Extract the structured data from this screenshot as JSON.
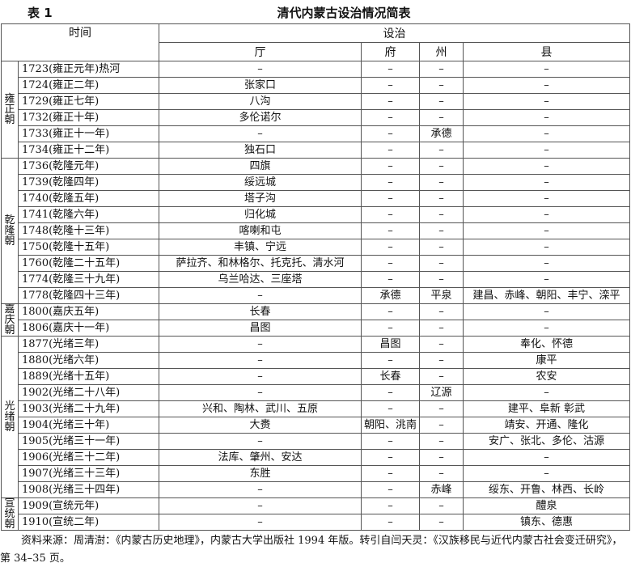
{
  "table_label": "表 1",
  "title": "清代内蒙古设治情况简表",
  "headers": {
    "time": "时间",
    "setup": "设治",
    "ting": "厅",
    "fu": "府",
    "zhou": "州",
    "xian": "县"
  },
  "eras": [
    {
      "name": "雍正朝",
      "rows": [
        {
          "time": "1723(雍正元年)热河",
          "ting": "–",
          "fu": "–",
          "zhou": "–",
          "xian": "–"
        },
        {
          "time": "1724(雍正二年)",
          "ting": "张家口",
          "fu": "–",
          "zhou": "–",
          "xian": "–"
        },
        {
          "time": "1729(雍正七年)",
          "ting": "八沟",
          "fu": "–",
          "zhou": "–",
          "xian": "–"
        },
        {
          "time": "1732(雍正十年)",
          "ting": "多伦诺尔",
          "fu": "–",
          "zhou": "–",
          "xian": "–"
        },
        {
          "time": "1733(雍正十一年)",
          "ting": "–",
          "fu": "–",
          "zhou": "承德",
          "xian": "–"
        },
        {
          "time": "1734(雍正十二年)",
          "ting": "独石口",
          "fu": "–",
          "zhou": "–",
          "xian": "–"
        }
      ]
    },
    {
      "name": "乾隆朝",
      "rows": [
        {
          "time": "1736(乾隆元年)",
          "ting": "四旗",
          "fu": "–",
          "zhou": "–",
          "xian": "–"
        },
        {
          "time": "1739(乾隆四年)",
          "ting": "绥远城",
          "fu": "–",
          "zhou": "–",
          "xian": "–"
        },
        {
          "time": "1740(乾隆五年)",
          "ting": "塔子沟",
          "fu": "–",
          "zhou": "–",
          "xian": "–"
        },
        {
          "time": "1741(乾隆六年)",
          "ting": "归化城",
          "fu": "–",
          "zhou": "–",
          "xian": "–"
        },
        {
          "time": "1748(乾隆十三年)",
          "ting": "喀喇和屯",
          "fu": "–",
          "zhou": "–",
          "xian": "–"
        },
        {
          "time": "1750(乾隆十五年)",
          "ting": "丰镇、宁远",
          "fu": "–",
          "zhou": "–",
          "xian": "–"
        },
        {
          "time": "1760(乾隆二十五年)",
          "ting": "萨拉齐、和林格尔、托克托、清水河",
          "fu": "–",
          "zhou": "–",
          "xian": "–"
        },
        {
          "time": "1774(乾隆三十九年)",
          "ting": "乌兰哈达、三座塔",
          "fu": "–",
          "zhou": "–",
          "xian": "–"
        },
        {
          "time": "1778(乾隆四十三年)",
          "ting": "–",
          "fu": "承德",
          "zhou": "平泉",
          "xian": "建昌、赤峰、朝阳、丰宁、滦平"
        }
      ]
    },
    {
      "name": "嘉庆朝",
      "rows": [
        {
          "time": "1800(嘉庆五年)",
          "ting": "长春",
          "fu": "–",
          "zhou": "–",
          "xian": "–"
        },
        {
          "time": "1806(嘉庆十一年)",
          "ting": "昌图",
          "fu": "–",
          "zhou": "–",
          "xian": "–"
        }
      ]
    },
    {
      "name": "光绪朝",
      "rows": [
        {
          "time": "1877(光绪三年)",
          "ting": "–",
          "fu": "昌图",
          "zhou": "–",
          "xian": "奉化、怀德"
        },
        {
          "time": "1880(光绪六年)",
          "ting": "–",
          "fu": "–",
          "zhou": "–",
          "xian": "康平"
        },
        {
          "time": "1889(光绪十五年)",
          "ting": "–",
          "fu": "长春",
          "zhou": "–",
          "xian": "农安"
        },
        {
          "time": "1902(光绪二十八年)",
          "ting": "–",
          "fu": "–",
          "zhou": "辽源",
          "xian": "–"
        },
        {
          "time": "1903(光绪二十九年)",
          "ting": "兴和、陶林、武川、五原",
          "fu": "–",
          "zhou": "–",
          "xian": "建平、阜新 彰武"
        },
        {
          "time": "1904(光绪三十年)",
          "ting": "大赉",
          "fu": "朝阳、洮南",
          "zhou": "–",
          "xian": "靖安、开通、隆化"
        },
        {
          "time": "1905(光绪三十一年)",
          "ting": "–",
          "fu": "–",
          "zhou": "–",
          "xian": "安广、张北、多伦、沽源"
        },
        {
          "time": "1906(光绪三十二年)",
          "ting": "法库、肇州、安达",
          "fu": "–",
          "zhou": "–",
          "xian": "–"
        },
        {
          "time": "1907(光绪三十三年)",
          "ting": "东胜",
          "fu": "–",
          "zhou": "–",
          "xian": "–"
        },
        {
          "time": "1908(光绪三十四年)",
          "ting": "–",
          "fu": "–",
          "zhou": "赤峰",
          "xian": "绥东、开鲁、林西、长岭"
        }
      ]
    },
    {
      "name": "宣统朝",
      "rows": [
        {
          "time": "1909(宣统元年)",
          "ting": "–",
          "fu": "–",
          "zhou": "–",
          "xian": "醴泉"
        },
        {
          "time": "1910(宣统二年)",
          "ting": "–",
          "fu": "–",
          "zhou": "–",
          "xian": "镇东、德惠"
        }
      ]
    }
  ],
  "source_note": "资料来源：周清澍：《内蒙古历史地理》，内蒙古大学出版社 1994 年版。转引自闫天灵：《汉族移民与近代内蒙古社会变迁研究》，第 34–35 页。"
}
